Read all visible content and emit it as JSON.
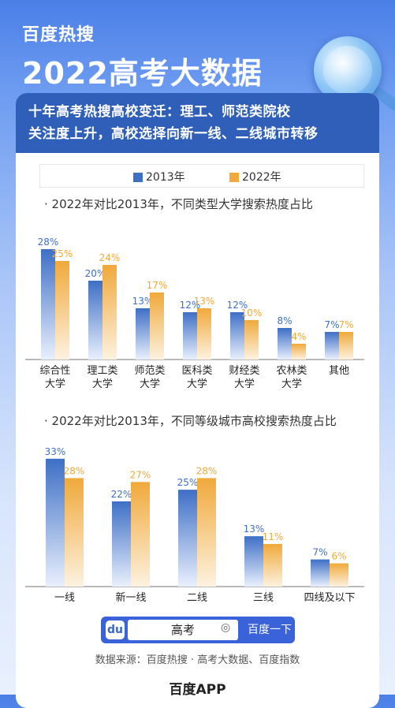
{
  "brand": "百度热搜",
  "title": "2022高考大数据",
  "header": {
    "line1": "十年高考热搜高校变迁：理工、师范类院校",
    "line2": "关注度上升，高校选择向新一线、二线城市转移"
  },
  "legend": {
    "s1": "2013年",
    "s2": "2022年"
  },
  "colors": {
    "s1": "#3e6fc6",
    "s2": "#f0a93a"
  },
  "chart_data": [
    {
      "type": "bar",
      "title": "· 2022年对比2013年，不同类型大学搜索热度占比",
      "categories": [
        [
          "综合性",
          "大学"
        ],
        [
          "理工类",
          "大学"
        ],
        [
          "师范类",
          "大学"
        ],
        [
          "医科类",
          "大学"
        ],
        [
          "财经类",
          "大学"
        ],
        [
          "农林类",
          "大学"
        ],
        [
          "其他"
        ]
      ],
      "series": [
        {
          "name": "2013年",
          "values": [
            28,
            20,
            13,
            12,
            12,
            8,
            7
          ],
          "labels": [
            "28%",
            "20%",
            "13%",
            "12%",
            "12%",
            "8%",
            "7%"
          ]
        },
        {
          "name": "2022年",
          "values": [
            25,
            24,
            17,
            13,
            10,
            4,
            7
          ],
          "labels": [
            "25%",
            "24%",
            "17%",
            "13%",
            "10%",
            "4%",
            "7%"
          ]
        }
      ],
      "ylim": [
        0,
        30
      ]
    },
    {
      "type": "bar",
      "title": "· 2022年对比2013年，不同等级城市高校搜索热度占比",
      "categories": [
        [
          "一线"
        ],
        [
          "新一线"
        ],
        [
          "二线"
        ],
        [
          "三线"
        ],
        [
          "四线及以下"
        ]
      ],
      "series": [
        {
          "name": "2013年",
          "values": [
            33,
            22,
            25,
            13,
            7
          ],
          "labels": [
            "33%",
            "22%",
            "25%",
            "13%",
            "7%"
          ]
        },
        {
          "name": "2022年",
          "values": [
            28,
            27,
            28,
            11,
            6
          ],
          "labels": [
            "28%",
            "27%",
            "28%",
            "11%",
            "6%"
          ]
        }
      ],
      "ylim": [
        0,
        35
      ]
    }
  ],
  "search": {
    "query": "高考",
    "button": "百度一下",
    "logo_icon": "baidu-paw-icon",
    "camera_icon": "camera-icon"
  },
  "source": "数据来源：百度热搜 · 高考大数据、百度指数",
  "footer": "百度APP"
}
